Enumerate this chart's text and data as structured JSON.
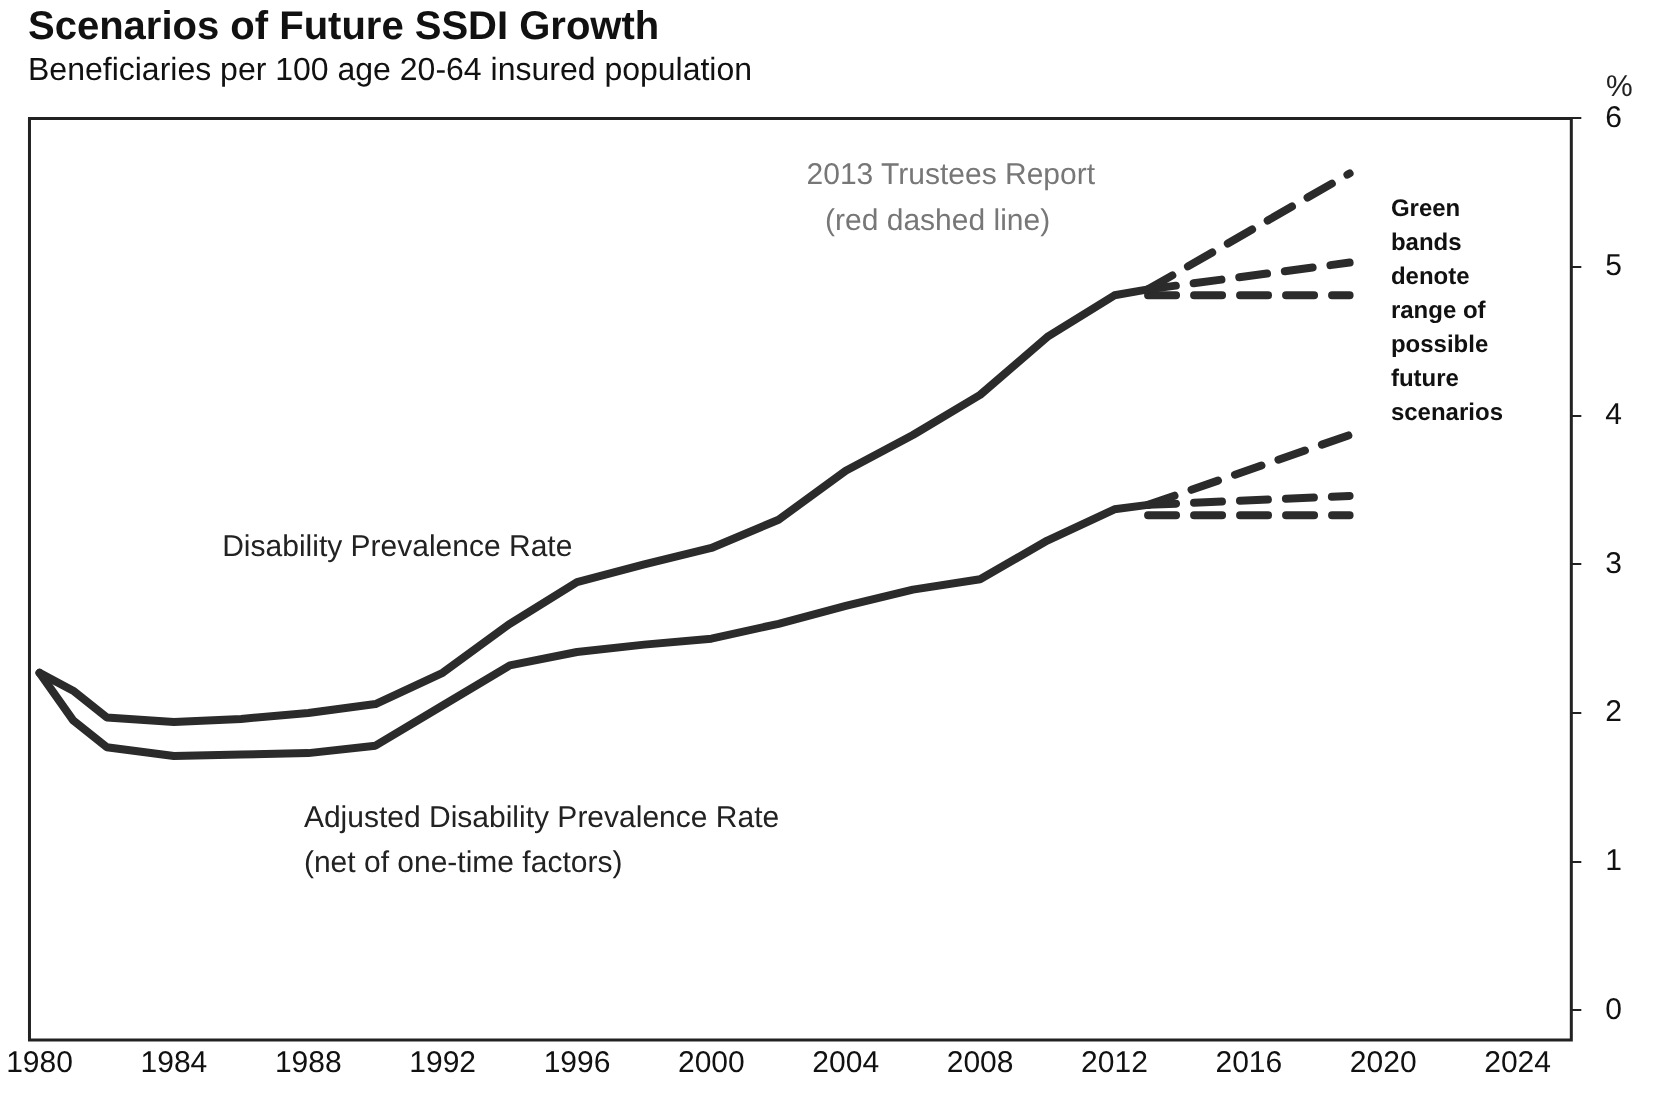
{
  "chart_data": {
    "type": "line",
    "title": "Scenarios of Future SSDI Growth",
    "subtitle": "Beneficiaries per 100 age 20-64 insured population",
    "ylabel": "%",
    "xlim": [
      1979.7,
      2025.6
    ],
    "xticks": [
      1980,
      1984,
      1988,
      1992,
      1996,
      2000,
      2004,
      2008,
      2012,
      2016,
      2020,
      2024
    ],
    "ylim": [
      -0.2,
      6
    ],
    "yticks": [
      0,
      1,
      2,
      3,
      4,
      5,
      6
    ],
    "grid": false,
    "legend": false,
    "marker": "none",
    "series": [
      {
        "color": "#2b2b2b",
        "line_style": "solid",
        "x": [
          1980,
          1981,
          1982,
          1984,
          1986,
          1988,
          1990,
          1992,
          1994,
          1996,
          1998,
          2000,
          2002,
          2004,
          2006,
          2008,
          2010,
          2012,
          2013
        ],
        "values": [
          2.27,
          2.15,
          1.97,
          1.94,
          1.96,
          2.0,
          2.06,
          2.27,
          2.6,
          2.88,
          3.0,
          3.11,
          3.3,
          3.63,
          3.87,
          4.14,
          4.53,
          4.81,
          4.85
        ]
      },
      {
        "color": "#2b2b2b",
        "line_style": "solid",
        "x": [
          1980,
          1981,
          1982,
          1984,
          1986,
          1988,
          1990,
          1992,
          1994,
          1996,
          1998,
          2000,
          2002,
          2004,
          2006,
          2008,
          2010,
          2012,
          2013
        ],
        "values": [
          2.27,
          1.95,
          1.77,
          1.71,
          1.72,
          1.73,
          1.78,
          2.05,
          2.32,
          2.41,
          2.46,
          2.5,
          2.6,
          2.72,
          2.83,
          2.9,
          3.16,
          3.37,
          3.4
        ]
      },
      {
        "color": "#2b2b2b",
        "line_style": "dashed",
        "x": [
          2013,
          2019
        ],
        "values": [
          4.85,
          5.63
        ]
      },
      {
        "color": "#2b2b2b",
        "line_style": "dashed",
        "x": [
          2013,
          2019
        ],
        "values": [
          4.85,
          5.03
        ]
      },
      {
        "color": "#2b2b2b",
        "line_style": "dashed",
        "x": [
          2013,
          2019
        ],
        "values": [
          4.81,
          4.81
        ]
      },
      {
        "color": "#2b2b2b",
        "line_style": "dashed",
        "x": [
          2013,
          2019
        ],
        "values": [
          3.4,
          3.87
        ]
      },
      {
        "color": "#2b2b2b",
        "line_style": "dashed",
        "x": [
          2013,
          2019
        ],
        "values": [
          3.4,
          3.46
        ]
      },
      {
        "color": "#2b2b2b",
        "line_style": "dashed",
        "x": [
          2013,
          2019
        ],
        "values": [
          3.33,
          3.33
        ]
      }
    ],
    "annotations": [
      "Disability Prevalence Rate",
      "Adjusted Disability Prevalence Rate",
      "(net of one-time factors)",
      "2013 Trustees Report",
      "(red dashed line)",
      "Green\nbands\ndenote\nrange of\npossible\nfuture\nscenarios"
    ]
  }
}
